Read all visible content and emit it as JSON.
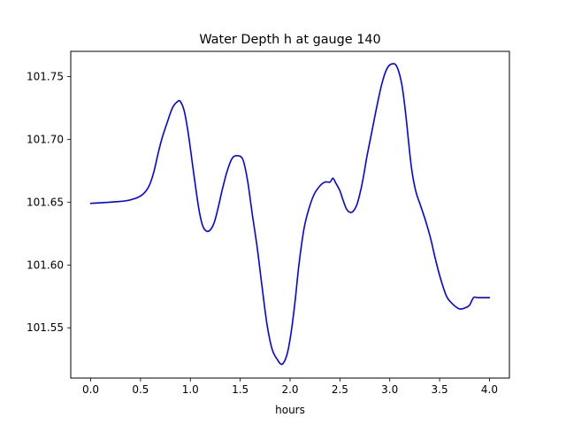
{
  "chart_data": {
    "type": "line",
    "title": "Water Depth h at gauge 140",
    "xlabel": "hours",
    "ylabel": "",
    "xlim": [
      -0.2,
      4.2
    ],
    "ylim": [
      101.51,
      101.77
    ],
    "grid": false,
    "legend": "none",
    "x_ticks": [
      0.0,
      0.5,
      1.0,
      1.5,
      2.0,
      2.5,
      3.0,
      3.5,
      4.0
    ],
    "x_tick_labels": [
      "0.0",
      "0.5",
      "1.0",
      "1.5",
      "2.0",
      "2.5",
      "3.0",
      "3.5",
      "4.0"
    ],
    "y_ticks": [
      101.55,
      101.6,
      101.65,
      101.7,
      101.75
    ],
    "y_tick_labels": [
      "101.55",
      "101.60",
      "101.65",
      "101.70",
      "101.75"
    ],
    "series": [
      {
        "name": "",
        "color": "#0000ff",
        "x": [
          0.0,
          0.2,
          0.35,
          0.45,
          0.52,
          0.58,
          0.63,
          0.68,
          0.72,
          0.77,
          0.82,
          0.87,
          0.9,
          0.94,
          0.98,
          1.03,
          1.08,
          1.12,
          1.16,
          1.2,
          1.24,
          1.28,
          1.32,
          1.37,
          1.42,
          1.47,
          1.52,
          1.55,
          1.58,
          1.62,
          1.67,
          1.72,
          1.77,
          1.82,
          1.87,
          1.92,
          1.97,
          2.01,
          2.05,
          2.09,
          2.14,
          2.19,
          2.24,
          2.3,
          2.35,
          2.4,
          2.43,
          2.46,
          2.5,
          2.53,
          2.57,
          2.62,
          2.67,
          2.71,
          2.74,
          2.77,
          2.82,
          2.87,
          2.92,
          2.97,
          3.02,
          3.07,
          3.12,
          3.16,
          3.19,
          3.22,
          3.26,
          3.31,
          3.36,
          3.41,
          3.46,
          3.51,
          3.57,
          3.63,
          3.7,
          3.76,
          3.8,
          3.84,
          3.88,
          3.92,
          3.96,
          4.0
        ],
        "values": [
          101.649,
          101.65,
          101.651,
          101.653,
          101.656,
          101.662,
          101.673,
          101.69,
          101.702,
          101.714,
          101.725,
          101.73,
          101.73,
          101.722,
          101.704,
          101.675,
          101.647,
          101.632,
          101.627,
          101.628,
          101.634,
          101.646,
          101.66,
          101.675,
          101.685,
          101.687,
          101.685,
          101.677,
          101.664,
          101.641,
          101.614,
          101.582,
          101.552,
          101.533,
          101.525,
          101.521,
          101.529,
          101.546,
          101.571,
          101.601,
          101.629,
          101.645,
          101.656,
          101.663,
          101.666,
          101.666,
          101.669,
          101.665,
          101.659,
          101.652,
          101.644,
          101.642,
          101.648,
          101.66,
          101.672,
          101.686,
          101.706,
          101.726,
          101.744,
          101.756,
          101.76,
          101.758,
          101.744,
          101.72,
          101.697,
          101.676,
          101.659,
          101.647,
          101.635,
          101.621,
          101.604,
          101.589,
          101.575,
          101.569,
          101.565,
          101.566,
          101.568,
          101.574,
          101.574,
          101.574,
          101.574,
          101.574
        ]
      }
    ]
  }
}
